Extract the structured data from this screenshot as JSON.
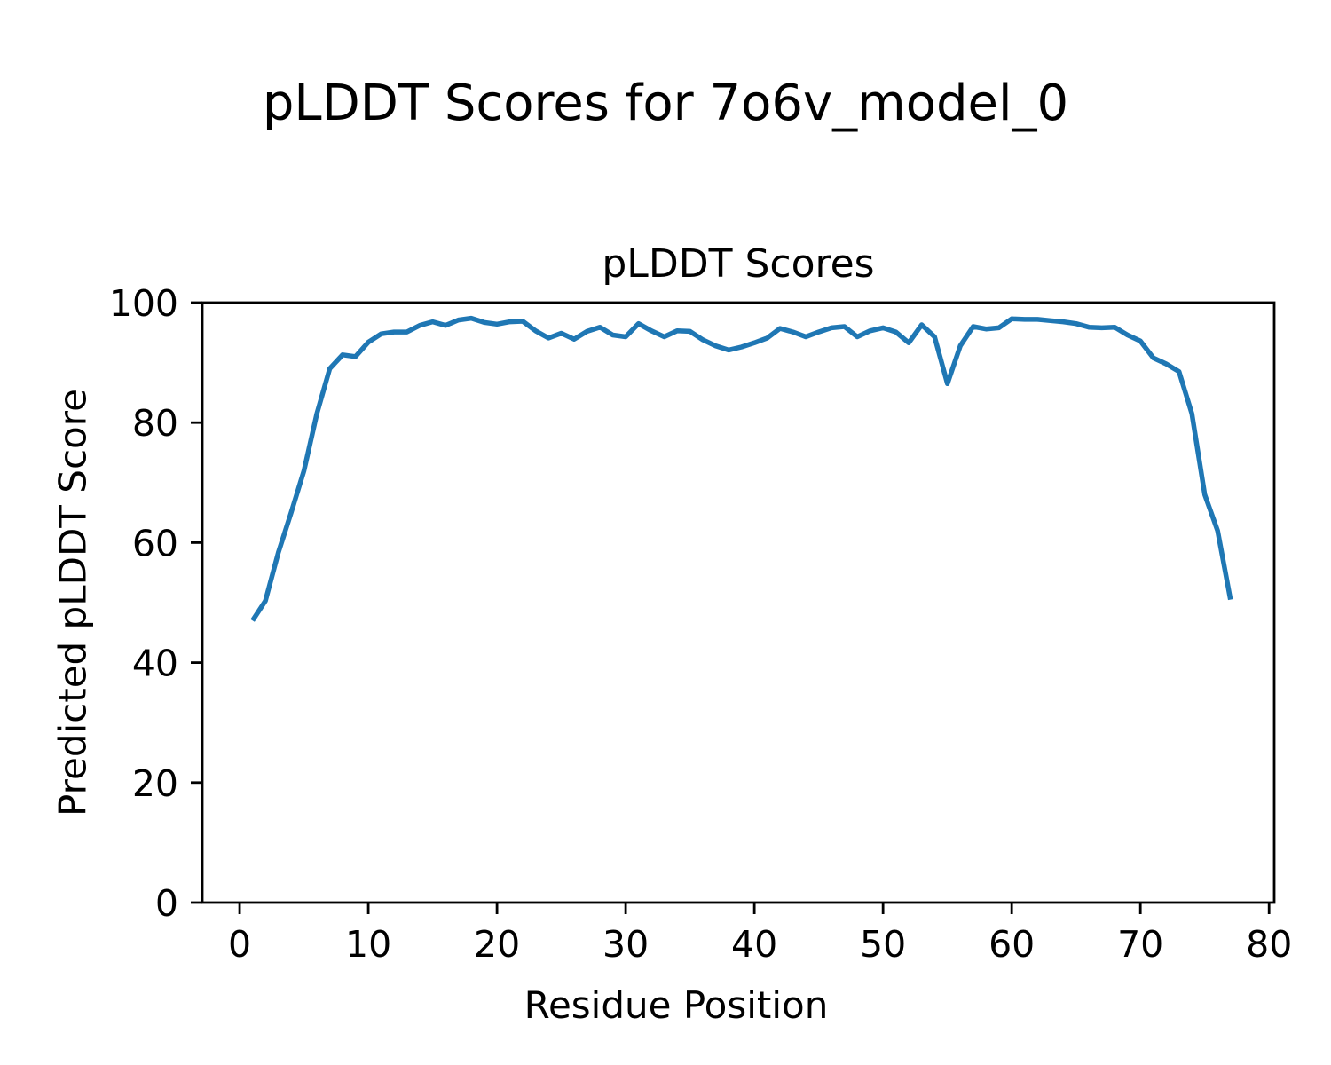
{
  "figure": {
    "suptitle": "pLDDT Scores for 7o6v_model_0"
  },
  "chart_data": {
    "type": "line",
    "title": "pLDDT Scores",
    "xlabel": "Residue Position",
    "ylabel": "Predicted pLDDT Score",
    "series": [
      {
        "name": "pLDDT",
        "color": "#1f77b4",
        "line_width": 5.5,
        "x": [
          1,
          2,
          3,
          4,
          5,
          6,
          7,
          8,
          9,
          10,
          11,
          12,
          13,
          14,
          15,
          16,
          17,
          18,
          19,
          20,
          21,
          22,
          23,
          24,
          25,
          26,
          27,
          28,
          29,
          30,
          31,
          32,
          33,
          34,
          35,
          36,
          37,
          38,
          39,
          40,
          41,
          42,
          43,
          44,
          45,
          46,
          47,
          48,
          49,
          50,
          51,
          52,
          53,
          54,
          55,
          56,
          57,
          58,
          59,
          60,
          61,
          62,
          63,
          64,
          65,
          66,
          67,
          68,
          69,
          70,
          71,
          72,
          73,
          74,
          75,
          76,
          77
        ],
        "y": [
          47.0,
          50.3,
          58.3,
          65.0,
          72.0,
          81.5,
          89.0,
          91.3,
          91.0,
          93.4,
          94.8,
          95.1,
          95.1,
          96.2,
          96.8,
          96.2,
          97.1,
          97.4,
          96.7,
          96.4,
          96.8,
          96.9,
          95.3,
          94.1,
          94.9,
          93.9,
          95.2,
          95.9,
          94.6,
          94.3,
          96.5,
          95.3,
          94.3,
          95.3,
          95.2,
          93.8,
          92.8,
          92.1,
          92.6,
          93.3,
          94.1,
          95.7,
          95.1,
          94.3,
          95.1,
          95.8,
          96.0,
          94.3,
          95.3,
          95.8,
          95.1,
          93.3,
          96.3,
          94.3,
          86.5,
          92.8,
          96.0,
          95.6,
          95.8,
          97.3,
          97.2,
          97.2,
          97.0,
          96.8,
          96.5,
          95.9,
          95.8,
          95.9,
          94.6,
          93.6,
          90.8,
          89.8,
          88.5,
          81.5,
          68.0,
          62.0,
          50.5
        ]
      }
    ],
    "xlim": [
      -2.9,
      80.4
    ],
    "ylim": [
      0,
      100
    ],
    "x_ticks": [
      0,
      10,
      20,
      30,
      40,
      50,
      60,
      70,
      80
    ],
    "y_ticks": [
      0,
      20,
      40,
      60,
      80,
      100
    ],
    "grid": false,
    "legend_position": "none",
    "axes_color": "#000000"
  }
}
